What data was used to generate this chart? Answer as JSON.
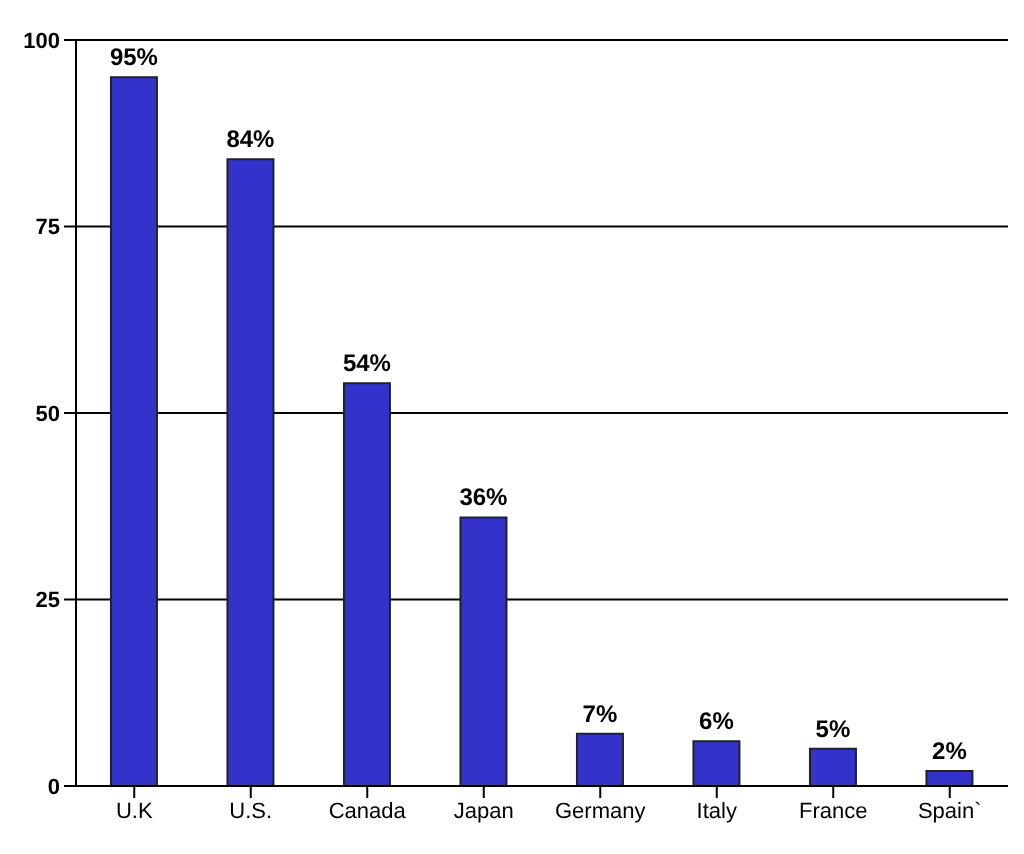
{
  "chart_data": {
    "type": "bar",
    "categories": [
      "U.K",
      "U.S.",
      "Canada",
      "Japan",
      "Germany",
      "Italy",
      "France",
      "Spain`"
    ],
    "values": [
      95,
      84,
      54,
      36,
      7,
      6,
      5,
      2
    ],
    "value_labels": [
      "95%",
      "84%",
      "54%",
      "36%",
      "7%",
      "6%",
      "5%",
      "2%"
    ],
    "color": "#3333cc",
    "ylim": [
      0,
      100
    ],
    "yticks": [
      0,
      25,
      50,
      75,
      100
    ],
    "grid": "y"
  }
}
